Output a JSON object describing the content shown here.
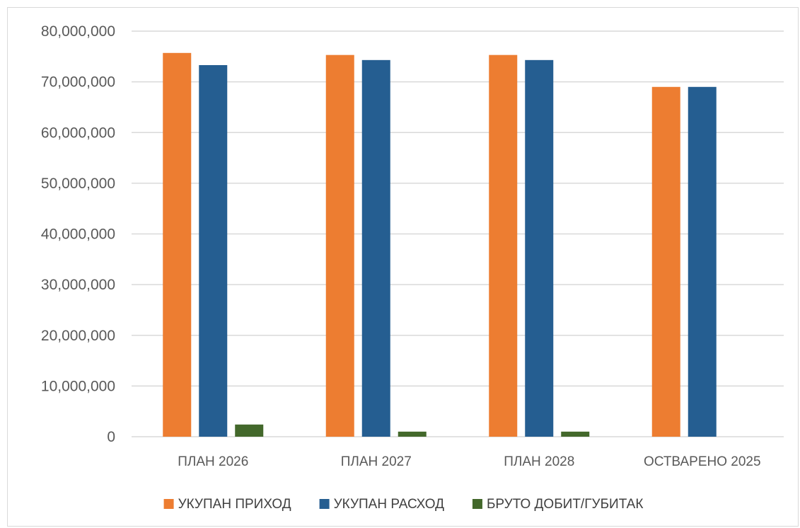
{
  "chart_data": {
    "type": "bar",
    "title": "",
    "xlabel": "",
    "ylabel": "",
    "ylim": [
      0,
      80000000
    ],
    "yticks": [
      0,
      10000000,
      20000000,
      30000000,
      40000000,
      50000000,
      60000000,
      70000000,
      80000000
    ],
    "ytick_labels": [
      "0",
      "10,000,000",
      "20,000,000",
      "30,000,000",
      "40,000,000",
      "50,000,000",
      "60,000,000",
      "70,000,000",
      "80,000,000"
    ],
    "grid": true,
    "legend_position": "bottom",
    "categories": [
      "ПЛАН 2026",
      "ПЛАН 2027",
      "ПЛАН 2028",
      "ОСТВАРЕНО 2025"
    ],
    "series": [
      {
        "name": "УКУПАН ПРИХОД",
        "color": "#ED7D31",
        "values": [
          75700000,
          75300000,
          75300000,
          69000000
        ]
      },
      {
        "name": "УКУПАН РАСХОД",
        "color": "#255E91",
        "values": [
          73300000,
          74300000,
          74300000,
          69000000
        ]
      },
      {
        "name": "БРУТО ДОБИТ/ГУБИТАК",
        "color": "#43682B",
        "values": [
          2400000,
          1000000,
          1000000,
          0
        ]
      }
    ]
  }
}
